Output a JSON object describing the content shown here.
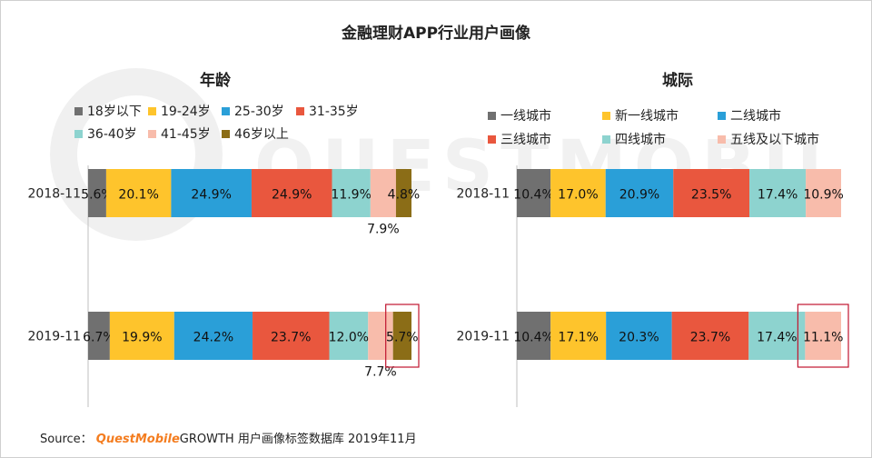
{
  "title": "金融理财APP行业用户画像",
  "source": {
    "prefix": "Source：",
    "brand": "QuestMobile",
    "suffix": "GROWTH 用户画像标签数据库   2019年11月"
  },
  "watermark": "QUESTMOBILE",
  "chart_data": [
    {
      "type": "bar",
      "orientation": "horizontal",
      "stacked": true,
      "title": "年龄",
      "categories": [
        "2018-11",
        "2019-11"
      ],
      "legend_position": "top",
      "series": [
        {
          "name": "18岁以下",
          "color": "#707070",
          "values": [
            5.6,
            6.7
          ]
        },
        {
          "name": "19-24岁",
          "color": "#fec42c",
          "values": [
            20.1,
            19.9
          ]
        },
        {
          "name": "25-30岁",
          "color": "#2a9fd8",
          "values": [
            24.9,
            24.2
          ]
        },
        {
          "name": "31-35岁",
          "color": "#e9573e",
          "values": [
            24.9,
            23.7
          ]
        },
        {
          "name": "36-40岁",
          "color": "#8dd3cf",
          "values": [
            11.9,
            12.0
          ]
        },
        {
          "name": "41-45岁",
          "color": "#f8bcab",
          "values": [
            7.9,
            7.7
          ]
        },
        {
          "name": "46岁以上",
          "color": "#8b6d17",
          "values": [
            4.8,
            5.7
          ]
        }
      ],
      "data_labels": [
        [
          "5.6%",
          "20.1%",
          "24.9%",
          "24.9%",
          "11.9%",
          "7.9%",
          "4.8%"
        ],
        [
          "6.7%",
          "19.9%",
          "24.2%",
          "23.7%",
          "12.0%",
          "7.7%",
          "5.7%"
        ]
      ],
      "highlight": {
        "category": "2019-11",
        "series": "46岁以上"
      }
    },
    {
      "type": "bar",
      "orientation": "horizontal",
      "stacked": true,
      "title": "城际",
      "categories": [
        "2018-11",
        "2019-11"
      ],
      "legend_position": "top",
      "series": [
        {
          "name": "一线城市",
          "color": "#707070",
          "values": [
            10.4,
            10.4
          ]
        },
        {
          "name": "新一线城市",
          "color": "#fec42c",
          "values": [
            17.0,
            17.1
          ]
        },
        {
          "name": "二线城市",
          "color": "#2a9fd8",
          "values": [
            20.9,
            20.3
          ]
        },
        {
          "name": "三线城市",
          "color": "#e9573e",
          "values": [
            23.5,
            23.7
          ]
        },
        {
          "name": "四线城市",
          "color": "#8dd3cf",
          "values": [
            17.4,
            17.4
          ]
        },
        {
          "name": "五线及以下城市",
          "color": "#f8bcab",
          "values": [
            10.9,
            11.1
          ]
        }
      ],
      "data_labels": [
        [
          "10.4%",
          "17.0%",
          "20.9%",
          "23.5%",
          "17.4%",
          "10.9%"
        ],
        [
          "10.4%",
          "17.1%",
          "20.3%",
          "23.7%",
          "17.4%",
          "11.1%"
        ]
      ],
      "highlight": {
        "category": "2019-11",
        "series": "五线及以下城市"
      }
    }
  ]
}
